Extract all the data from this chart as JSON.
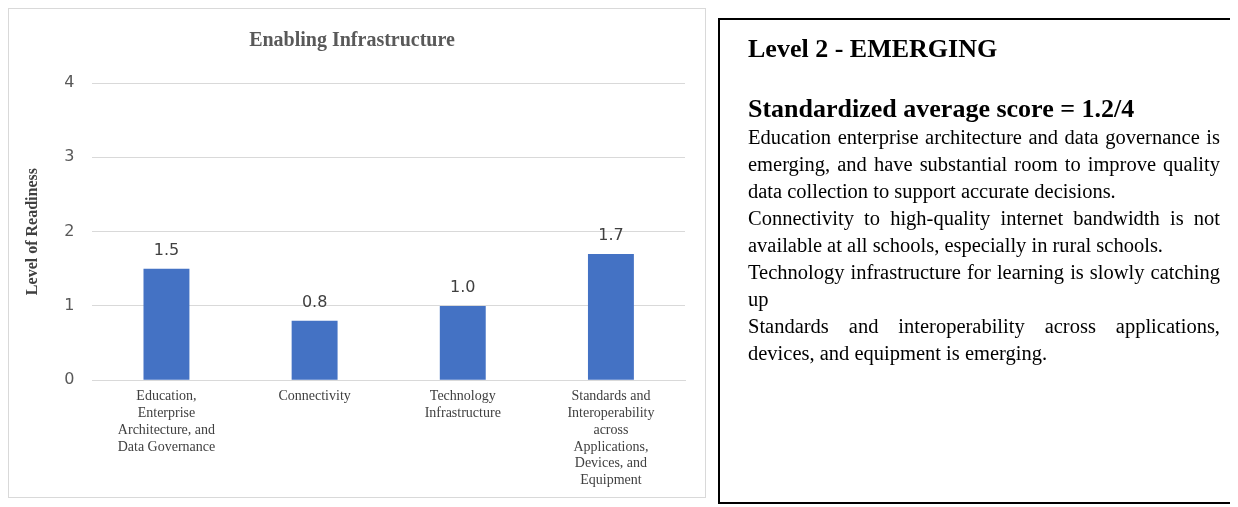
{
  "chart_data": [
    {
      "type": "bar",
      "title": "Enabling Infrastructure",
      "ylabel": "Level of Readiness",
      "categories": [
        "Education, Enterprise Architecture, and Data Governance",
        "Connectivity",
        "Technology Infrastructure",
        "Standards and Interoperability across Applications, Devices, and Equipment"
      ],
      "values": [
        1.5,
        0.8,
        1.0,
        1.7
      ],
      "color": "#4472c4",
      "value_labels": [
        "1.5",
        "0.8",
        "1.0",
        "1.7"
      ],
      "ylim": [
        0,
        4
      ],
      "yticks": [
        0,
        1,
        2,
        3,
        4
      ],
      "grid": "y",
      "legend": false
    },
    {
      "type": "other",
      "title": "Level 2 - EMERGING",
      "subtitle": "Standardized average score = 1.2/4",
      "annotations": [
        "Education enterprise architecture and data governance is emerging, and have substantial room to improve quality data collection to support accurate decisions.",
        "Connectivity to high-quality internet bandwidth is not available at all schools, especially in rural schools.",
        "Technology infrastructure for learning is slowly catching up",
        "Standards and interoperability across applications, devices, and equipment is emerging."
      ]
    }
  ]
}
